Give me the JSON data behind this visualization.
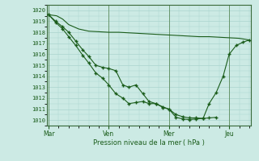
{
  "xlabel": "Pression niveau de la mer ( hPa )",
  "background_color": "#cceae4",
  "grid_color": "#aad4ce",
  "line_color": "#1a5c1a",
  "ylim": [
    1009.5,
    1020.5
  ],
  "yticks": [
    1010,
    1011,
    1012,
    1013,
    1014,
    1015,
    1016,
    1017,
    1018,
    1019,
    1020
  ],
  "day_labels": [
    "Mar",
    "Ven",
    "Mer",
    "Jeu"
  ],
  "day_positions": [
    0.0,
    3.0,
    6.0,
    9.0
  ],
  "xlim": [
    -0.1,
    10.1
  ],
  "line1_x": [
    0.0,
    0.4,
    0.7,
    1.0,
    1.5,
    2.0,
    2.5,
    3.0,
    3.5,
    4.0,
    4.5,
    5.0,
    5.5,
    6.0,
    6.5,
    7.0,
    7.5,
    8.0,
    8.5,
    9.0,
    9.5,
    10.0
  ],
  "line1_y": [
    1019.6,
    1019.5,
    1019.2,
    1018.7,
    1018.3,
    1018.1,
    1018.05,
    1018.0,
    1018.0,
    1017.95,
    1017.9,
    1017.85,
    1017.8,
    1017.75,
    1017.7,
    1017.65,
    1017.6,
    1017.6,
    1017.55,
    1017.5,
    1017.45,
    1017.3
  ],
  "line2_x": [
    0.0,
    0.35,
    0.7,
    1.0,
    1.35,
    1.7,
    2.0,
    2.35,
    2.7,
    3.0,
    3.35,
    3.7,
    4.0,
    4.35,
    4.7,
    5.0,
    5.35,
    5.7,
    6.0,
    6.35,
    6.7,
    7.0,
    7.35,
    7.7,
    8.0,
    8.35
  ],
  "line2_y": [
    1019.6,
    1019.0,
    1018.5,
    1018.0,
    1017.2,
    1016.4,
    1015.8,
    1015.0,
    1014.8,
    1014.7,
    1014.5,
    1013.2,
    1013.0,
    1013.2,
    1012.4,
    1011.7,
    1011.5,
    1011.15,
    1011.0,
    1010.25,
    1010.1,
    1010.05,
    1010.1,
    1010.15,
    1010.2,
    1010.25
  ],
  "line3_x": [
    0.0,
    0.35,
    0.7,
    1.0,
    1.35,
    1.7,
    2.0,
    2.35,
    2.7,
    3.0,
    3.35,
    3.7,
    4.0,
    4.35,
    4.7,
    5.0,
    5.35,
    5.7,
    6.0,
    6.35,
    6.7,
    7.0,
    7.35,
    7.7,
    8.0,
    8.35,
    8.7,
    9.0,
    9.35,
    9.7,
    10.0
  ],
  "line3_y": [
    1019.6,
    1018.9,
    1018.3,
    1017.6,
    1016.8,
    1015.9,
    1015.2,
    1014.3,
    1013.8,
    1013.2,
    1012.4,
    1012.0,
    1011.5,
    1011.6,
    1011.7,
    1011.5,
    1011.5,
    1011.2,
    1011.0,
    1010.5,
    1010.3,
    1010.2,
    1010.2,
    1010.15,
    1011.5,
    1012.5,
    1014.0,
    1016.0,
    1016.8,
    1017.1,
    1017.3
  ]
}
